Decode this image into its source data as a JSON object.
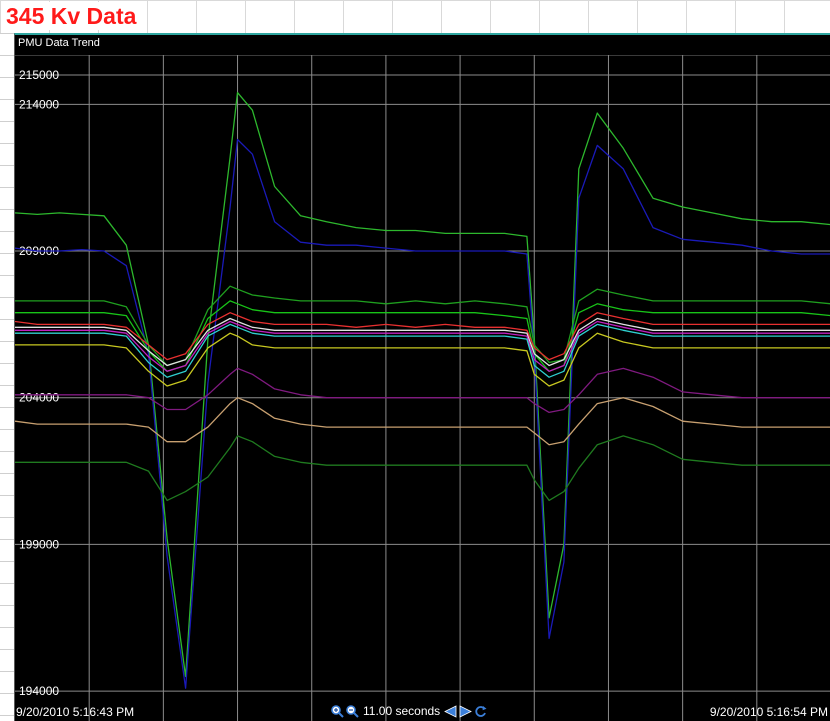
{
  "page": {
    "title": "345 Kv Data"
  },
  "panel": {
    "title": "PMU Data Trend"
  },
  "footer": {
    "start_time": "9/20/2010 5:16:43 PM",
    "end_time": "9/20/2010 5:16:54 PM",
    "duration": "11.00 seconds",
    "icons": [
      "zoom-in-icon",
      "zoom-out-icon",
      "arrow-left-icon",
      "arrow-right-icon",
      "refresh-icon"
    ]
  },
  "chart_data": {
    "type": "line",
    "title": "",
    "xlabel": "",
    "ylabel": "",
    "x_range": [
      "9/20/2010 5:16:43 PM",
      "9/20/2010 5:16:54 PM"
    ],
    "ylim": [
      193800,
      215000
    ],
    "y_tick_labels": [
      "215000",
      "214000",
      "209000",
      "204000",
      "199000",
      "194000"
    ],
    "y_ticks": [
      215000,
      214000,
      209000,
      204000,
      199000,
      194000
    ],
    "grid": true,
    "x_grid_count": 11,
    "x": [
      0,
      0.3,
      0.6,
      0.9,
      1.2,
      1.5,
      1.8,
      2.05,
      2.3,
      2.6,
      2.9,
      3.0,
      3.2,
      3.5,
      3.85,
      4.2,
      4.6,
      5.0,
      5.4,
      5.8,
      6.2,
      6.6,
      6.9,
      7.0,
      7.2,
      7.4,
      7.6,
      7.85,
      8.2,
      8.6,
      9.0,
      9.4,
      9.8,
      10.2,
      10.6,
      11.0
    ],
    "series": [
      {
        "color": "#2db82d",
        "values": [
          210300,
          210250,
          210300,
          210250,
          210200,
          209200,
          205800,
          199200,
          194500,
          206000,
          212200,
          214400,
          213800,
          211200,
          210200,
          210000,
          209800,
          209700,
          209700,
          209600,
          209600,
          209600,
          209500,
          206000,
          196500,
          199000,
          211800,
          213700,
          212500,
          210800,
          210500,
          210300,
          210100,
          210000,
          210000,
          209900
        ]
      },
      {
        "color": "#1a1ab8",
        "values": [
          209100,
          209000,
          209000,
          209050,
          209000,
          208500,
          205500,
          198600,
          194100,
          204500,
          210500,
          212800,
          212300,
          210000,
          209300,
          209200,
          209200,
          209100,
          209000,
          209000,
          209000,
          209000,
          208900,
          205500,
          195800,
          198400,
          210800,
          212600,
          211800,
          209800,
          209400,
          209300,
          209200,
          209000,
          208900,
          208900
        ]
      },
      {
        "color": "#1f9f1f",
        "values": [
          207300,
          207300,
          207300,
          207300,
          207300,
          207100,
          205800,
          205100,
          205300,
          207000,
          207800,
          207700,
          207500,
          207400,
          207300,
          207300,
          207300,
          207200,
          207300,
          207200,
          207300,
          207200,
          207100,
          205800,
          205200,
          205300,
          207300,
          207700,
          207500,
          207300,
          207300,
          207300,
          207300,
          207300,
          207300,
          207200
        ]
      },
      {
        "color": "#18c418",
        "values": [
          206900,
          206900,
          206900,
          206900,
          206900,
          206800,
          205600,
          204900,
          205100,
          206700,
          207300,
          207200,
          207000,
          206900,
          206900,
          206900,
          206900,
          206900,
          206900,
          206900,
          206900,
          206800,
          206700,
          205500,
          204900,
          205100,
          206900,
          207200,
          207000,
          206900,
          206900,
          206900,
          206900,
          206900,
          206900,
          206800
        ]
      },
      {
        "color": "#e83030",
        "values": [
          206600,
          206500,
          206500,
          206500,
          206500,
          206400,
          205800,
          205300,
          205500,
          206500,
          206900,
          206800,
          206600,
          206500,
          206500,
          206500,
          206400,
          206500,
          206400,
          206500,
          206400,
          206400,
          206300,
          205700,
          205300,
          205500,
          206500,
          206900,
          206700,
          206500,
          206500,
          206500,
          206500,
          206500,
          206500,
          206500
        ]
      },
      {
        "color": "#e0e0e0",
        "values": [
          206400,
          206400,
          206400,
          206400,
          206400,
          206300,
          205600,
          205100,
          205300,
          206300,
          206700,
          206600,
          206400,
          206300,
          206300,
          206300,
          206300,
          206300,
          206300,
          206300,
          206300,
          206300,
          206200,
          205500,
          205100,
          205300,
          206300,
          206700,
          206500,
          206300,
          206300,
          206300,
          206300,
          206300,
          206300,
          206300
        ]
      },
      {
        "color": "#c020c0",
        "values": [
          206300,
          206300,
          206300,
          206300,
          206300,
          206200,
          205400,
          204900,
          205100,
          206200,
          206600,
          206500,
          206300,
          206200,
          206200,
          206200,
          206200,
          206200,
          206200,
          206200,
          206200,
          206200,
          206100,
          205300,
          204900,
          205100,
          206200,
          206600,
          206400,
          206200,
          206200,
          206200,
          206200,
          206200,
          206200,
          206200
        ]
      },
      {
        "color": "#2fd0d0",
        "values": [
          206200,
          206200,
          206200,
          206200,
          206200,
          206100,
          205200,
          204700,
          204900,
          206100,
          206500,
          206400,
          206200,
          206100,
          206100,
          206100,
          206100,
          206100,
          206100,
          206100,
          206100,
          206100,
          206000,
          205100,
          204700,
          204900,
          206100,
          206500,
          206300,
          206100,
          206100,
          206100,
          206100,
          206100,
          206100,
          206100
        ]
      },
      {
        "color": "#c8c820",
        "values": [
          205800,
          205800,
          205800,
          205800,
          205800,
          205700,
          204900,
          204400,
          204600,
          205700,
          206200,
          206100,
          205800,
          205700,
          205700,
          205700,
          205700,
          205700,
          205700,
          205700,
          205700,
          205700,
          205600,
          204800,
          204400,
          204600,
          205700,
          206200,
          205900,
          205700,
          205700,
          205700,
          205700,
          205700,
          205700,
          205700
        ]
      },
      {
        "color": "#801a80",
        "values": [
          204100,
          204100,
          204100,
          204100,
          204100,
          204100,
          204000,
          203600,
          203600,
          204100,
          204800,
          205000,
          204800,
          204300,
          204100,
          204000,
          204000,
          204000,
          204000,
          204000,
          204000,
          204000,
          204000,
          203800,
          203500,
          203600,
          204100,
          204800,
          205000,
          204700,
          204200,
          204100,
          204000,
          204000,
          204000,
          204000
        ]
      },
      {
        "color": "#c8a070",
        "values": [
          203200,
          203100,
          203100,
          203100,
          203100,
          203100,
          203000,
          202500,
          202500,
          203000,
          203800,
          204000,
          203800,
          203300,
          203100,
          203000,
          203000,
          203000,
          203000,
          203000,
          203000,
          203000,
          203000,
          202800,
          202400,
          202500,
          203100,
          203800,
          204000,
          203700,
          203200,
          203100,
          203000,
          203000,
          203000,
          203000
        ]
      },
      {
        "color": "#1f7a1f",
        "values": [
          201800,
          201800,
          201800,
          201800,
          201800,
          201800,
          201500,
          200500,
          200800,
          201300,
          202300,
          202700,
          202500,
          202000,
          201800,
          201700,
          201700,
          201700,
          201700,
          201700,
          201700,
          201700,
          201700,
          201200,
          200500,
          200800,
          201600,
          202400,
          202700,
          202400,
          201900,
          201800,
          201700,
          201700,
          201700,
          201700
        ]
      }
    ]
  }
}
